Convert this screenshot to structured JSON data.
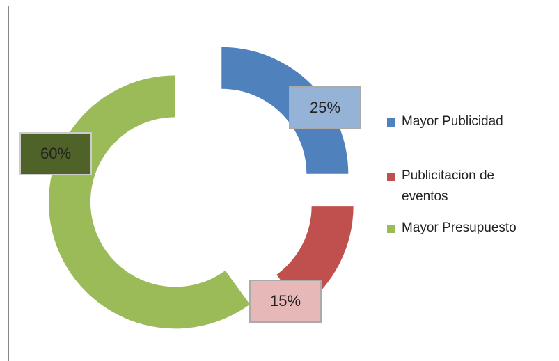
{
  "chart_data": {
    "type": "doughnut",
    "categories": [
      "Mayor Publicidad",
      "Publicitacion de eventos",
      "Mayor Presupuesto"
    ],
    "values": [
      25,
      15,
      60
    ],
    "value_labels": [
      "25%",
      "15%",
      "60%"
    ],
    "colors": [
      "#4f81bd",
      "#c0504d",
      "#9bbb59"
    ],
    "legend": "right"
  }
}
